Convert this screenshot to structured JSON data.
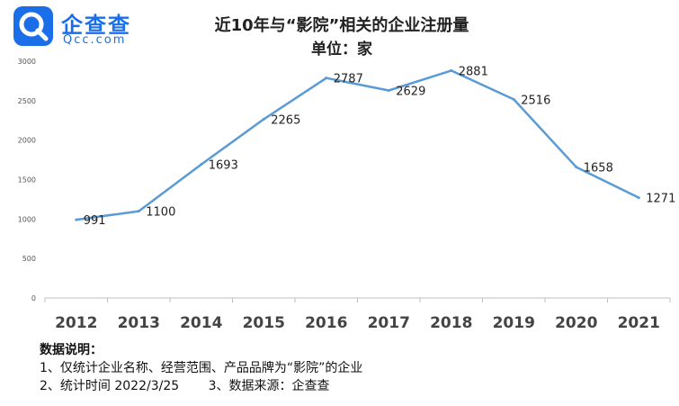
{
  "brand": {
    "name_cn": "企查查",
    "name_en": "Qcc.com",
    "primary_color": "#1a6fe8"
  },
  "header": {
    "title": "近10年与“影院”相关的企业注册量",
    "subtitle": "单位：家"
  },
  "chart_data": {
    "type": "line",
    "categories": [
      "2012",
      "2013",
      "2014",
      "2015",
      "2016",
      "2017",
      "2018",
      "2019",
      "2020",
      "2021"
    ],
    "values": [
      991,
      1100,
      1693,
      2265,
      2787,
      2629,
      2881,
      2516,
      1658,
      1271
    ],
    "data_labels": [
      "991",
      "1100",
      "1693",
      "2265",
      "2787",
      "2629",
      "2881",
      "2516",
      "1658",
      "1271"
    ],
    "ylim": [
      0,
      3000
    ],
    "yticks": [
      0,
      500,
      1000,
      1500,
      2000,
      2500,
      3000
    ],
    "ytick_labels": [
      "0",
      "500",
      "1000",
      "1500",
      "2000",
      "2500",
      "3000"
    ],
    "xtick_labels": [
      "2012",
      "2013",
      "2014",
      "2015",
      "2016",
      "2017",
      "2018",
      "2019",
      "2020",
      "2021"
    ],
    "line_color": "#5b9bd5",
    "grid": false,
    "legend": "none"
  },
  "notes": {
    "heading": "数据说明：",
    "line1": "1、仅统计企业名称、经营范围、产品品牌为“影院”的企业",
    "line2_a": "2、统计时间 2022/3/25",
    "line2_b": "3、数据来源：企查查"
  }
}
